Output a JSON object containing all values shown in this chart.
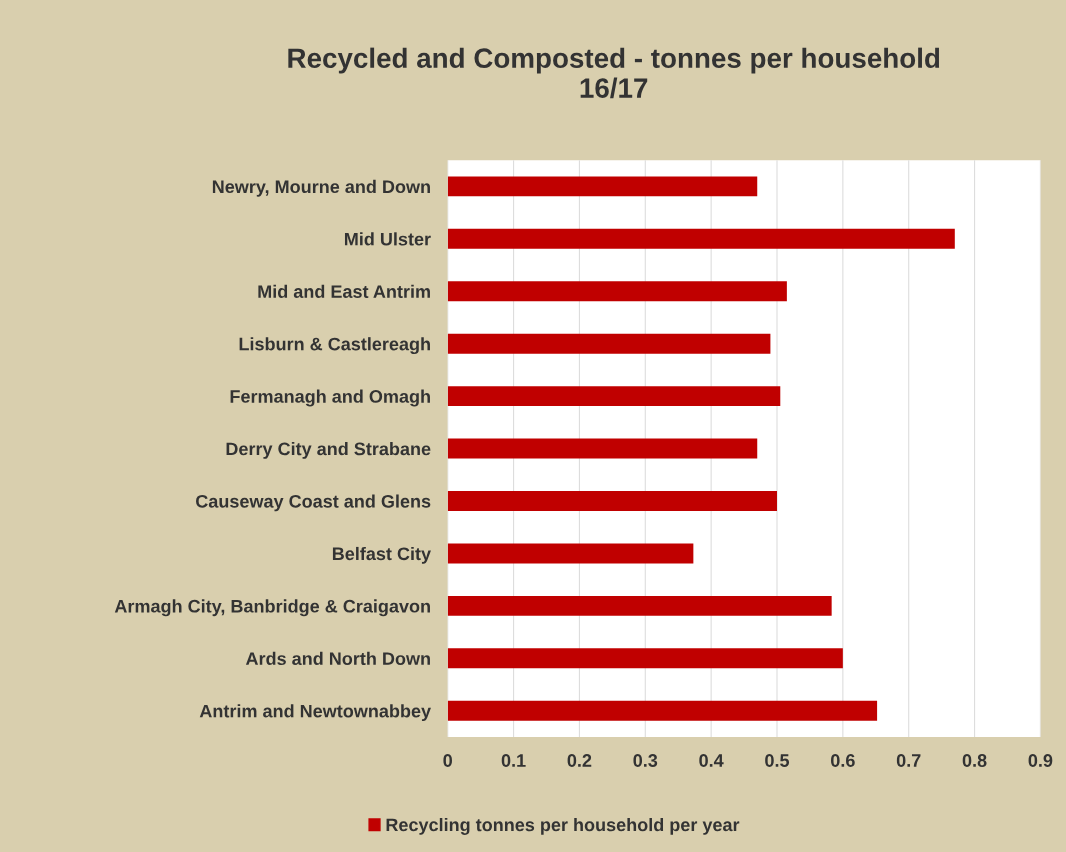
{
  "chart_data": {
    "type": "bar",
    "orientation": "horizontal",
    "title": "Recycled and Composted - tonnes per household\n16/17",
    "categories": [
      "Newry, Mourne and Down",
      "Mid Ulster",
      "Mid and East Antrim",
      "Lisburn & Castlereagh",
      "Fermanagh and Omagh",
      "Derry City and Strabane",
      "Causeway Coast and Glens",
      "Belfast City",
      "Armagh City, Banbridge & Craigavon",
      "Ards and North Down",
      "Antrim and Newtownabbey"
    ],
    "series": [
      {
        "name": "Recycling tonnes per household per year",
        "color": "#c00000",
        "values": [
          0.47,
          0.77,
          0.515,
          0.49,
          0.505,
          0.47,
          0.5,
          0.373,
          0.583,
          0.6,
          0.652
        ]
      }
    ],
    "xlim": [
      0,
      0.9
    ],
    "xticks": [
      0,
      0.1,
      0.2,
      0.3,
      0.4,
      0.5,
      0.6,
      0.7,
      0.8,
      0.9
    ],
    "grid": "x",
    "legend": "bottom"
  }
}
